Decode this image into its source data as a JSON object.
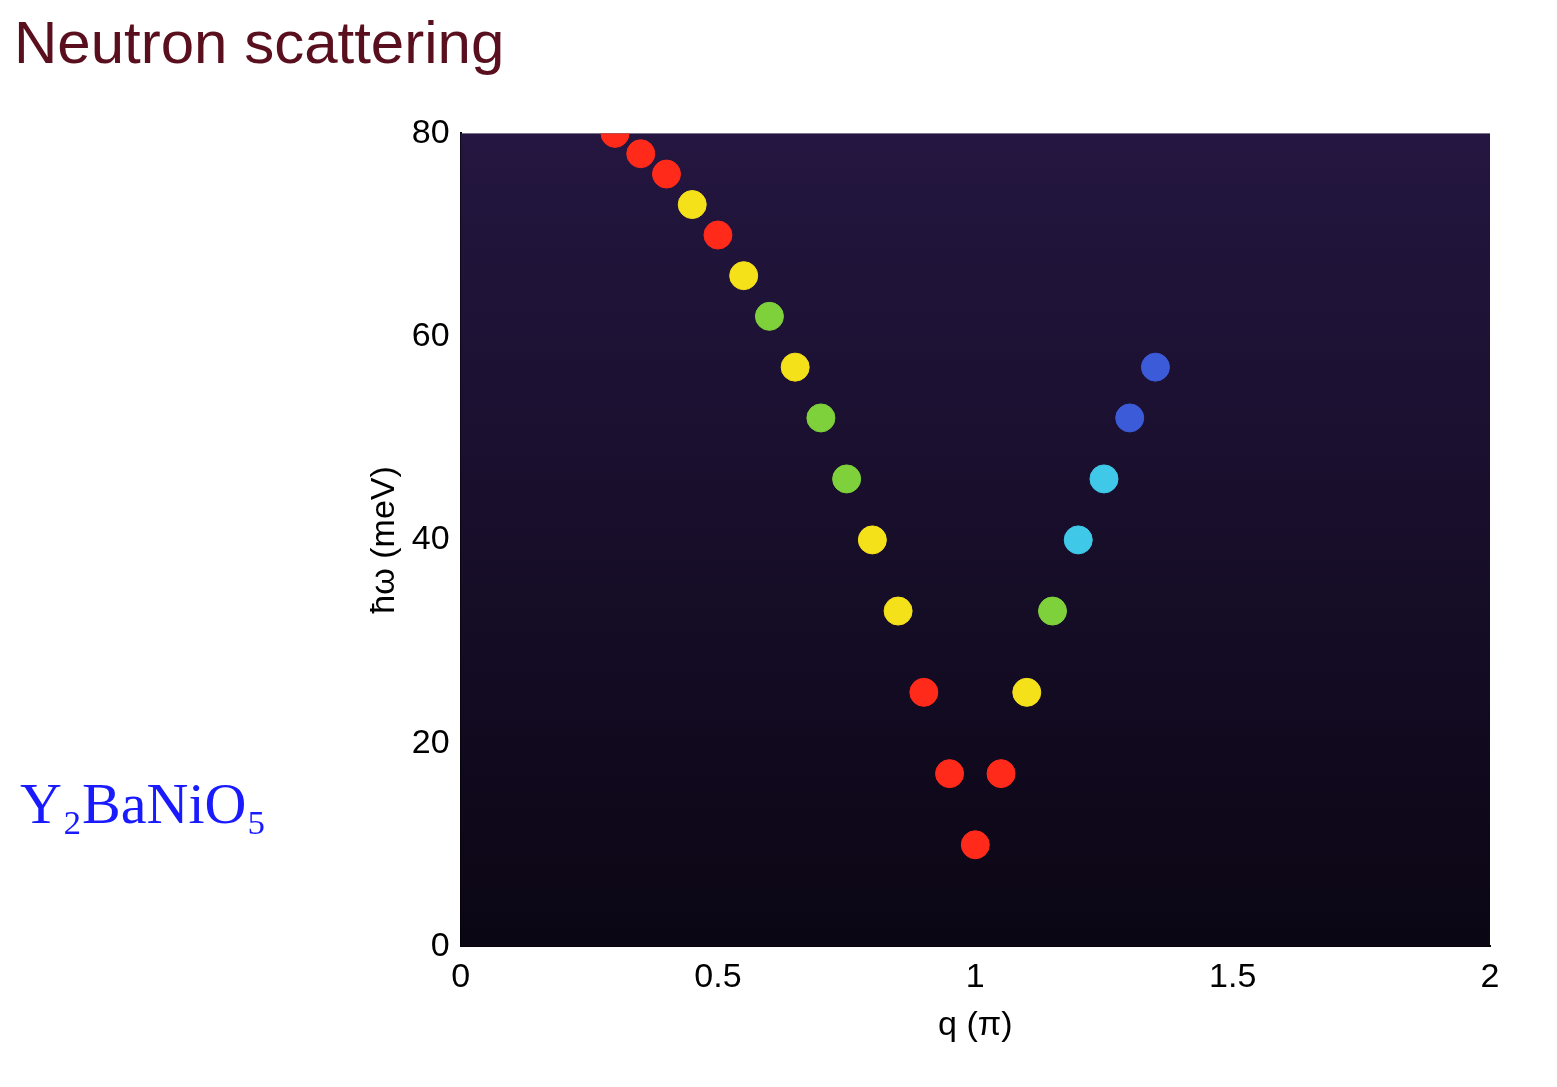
{
  "chart_data": {
    "type": "scatter",
    "title": "Neutron scattering",
    "annotation": "Y₂BaNiO₅",
    "x_label": "q (π)",
    "y_label": "ħω (meV)",
    "x": [
      0.3,
      0.35,
      0.4,
      0.45,
      0.5,
      0.55,
      0.6,
      0.65,
      0.7,
      0.75,
      0.8,
      0.85,
      0.9,
      0.95,
      1.0,
      1.05,
      1.1,
      1.15,
      1.2,
      1.25,
      1.3,
      1.35
    ],
    "values": [
      80,
      78,
      76,
      73,
      70,
      66,
      62,
      57,
      52,
      46,
      40,
      33,
      25,
      17,
      10,
      17,
      25,
      33,
      40,
      46,
      52,
      57
    ],
    "colors": [
      "#ff2a1a",
      "#ff2a1a",
      "#ff2a1a",
      "#f5e11a",
      "#ff2a1a",
      "#f5e11a",
      "#7fd13b",
      "#f5e11a",
      "#7fd13b",
      "#7fd13b",
      "#f5e11a",
      "#f5e11a",
      "#ff2a1a",
      "#ff2a1a",
      "#ff2a1a",
      "#ff2a1a",
      "#f5e11a",
      "#7fd13b",
      "#40c8e8",
      "#40c8e8",
      "#3b5bd9",
      "#3b5bd9"
    ],
    "marker": "circle",
    "xlim": [
      0,
      2
    ],
    "xticks": [
      0,
      0.5,
      1,
      1.5,
      2
    ],
    "ylim": [
      0,
      80
    ],
    "yticks": [
      0,
      20,
      40,
      60,
      80
    ],
    "grid": false
  }
}
